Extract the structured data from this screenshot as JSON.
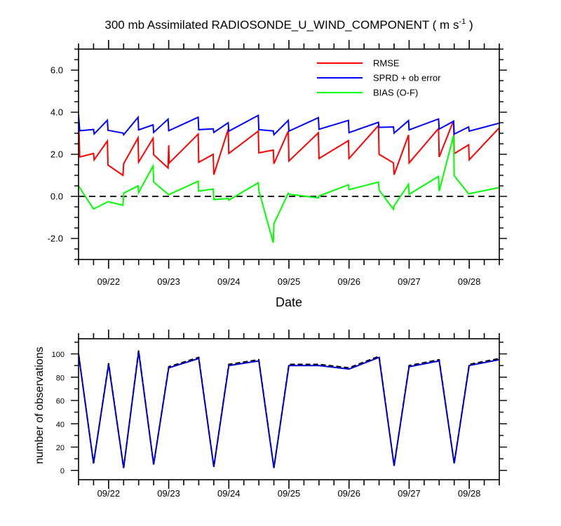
{
  "chart_data": [
    {
      "type": "line",
      "title": {
        "prefix": "300 mb Assimilated RADIOSONDE_U_WIND_COMPONENT ( m s",
        "sup": "-1",
        "suffix": " )"
      },
      "xlabel": "Date",
      "ylabel": "",
      "xlim": [
        21.5,
        28.5
      ],
      "ylim": [
        -3,
        7
      ],
      "yticks": [
        -2,
        0,
        2,
        4,
        6
      ],
      "ytick_labels": [
        "-2.0",
        "0.0",
        "2.0",
        "4.0",
        "6.0"
      ],
      "xticks": [
        22,
        23,
        24,
        25,
        26,
        27,
        28
      ],
      "xtick_labels": [
        "09/22",
        "09/23",
        "09/24",
        "09/25",
        "09/26",
        "09/27",
        "09/28"
      ],
      "reference_line": {
        "y": 0,
        "style": "dashed",
        "color": "#000000"
      },
      "legend": [
        "RMSE",
        "SPRD + ob error",
        "BIAS (O-F)"
      ],
      "legend_position": "top-right",
      "series": [
        {
          "name": "RMSE",
          "color": "#ff0000",
          "points": [
            [
              21.5,
              3.9
            ],
            [
              21.52,
              1.87
            ],
            [
              21.75,
              2.04
            ],
            [
              21.76,
              1.74
            ],
            [
              21.98,
              2.63
            ],
            [
              21.99,
              1.49
            ],
            [
              22.24,
              1.0
            ],
            [
              22.25,
              1.55
            ],
            [
              22.49,
              2.78
            ],
            [
              22.5,
              1.63
            ],
            [
              22.74,
              2.76
            ],
            [
              22.75,
              1.98
            ],
            [
              22.99,
              1.35
            ],
            [
              23.0,
              2.43
            ],
            [
              23.01,
              1.59
            ],
            [
              23.49,
              2.96
            ],
            [
              23.5,
              1.62
            ],
            [
              23.74,
              2.0
            ],
            [
              23.75,
              1.03
            ],
            [
              23.99,
              3.19
            ],
            [
              24.0,
              2.04
            ],
            [
              24.49,
              3.1
            ],
            [
              24.5,
              2.07
            ],
            [
              24.74,
              2.2
            ],
            [
              24.75,
              1.55
            ],
            [
              24.99,
              3.1
            ],
            [
              25.0,
              1.68
            ],
            [
              25.49,
              3.02
            ],
            [
              25.5,
              1.8
            ],
            [
              25.99,
              2.65
            ],
            [
              26.0,
              1.8
            ],
            [
              26.49,
              3.37
            ],
            [
              26.5,
              2.0
            ],
            [
              26.74,
              1.59
            ],
            [
              26.75,
              1.03
            ],
            [
              26.99,
              2.92
            ],
            [
              27.0,
              1.59
            ],
            [
              27.49,
              3.23
            ],
            [
              27.5,
              1.87
            ],
            [
              27.74,
              3.61
            ],
            [
              27.75,
              2.03
            ],
            [
              27.99,
              2.45
            ],
            [
              28.0,
              1.74
            ],
            [
              28.5,
              3.26
            ],
            [
              28.51,
              2.1
            ]
          ]
        },
        {
          "name": "SPRD + ob error",
          "color": "#0000ff",
          "points": [
            [
              21.5,
              3.9
            ],
            [
              21.52,
              3.12
            ],
            [
              21.75,
              3.18
            ],
            [
              21.76,
              2.97
            ],
            [
              21.98,
              3.62
            ],
            [
              21.99,
              3.14
            ],
            [
              22.24,
              3.01
            ],
            [
              22.25,
              2.93
            ],
            [
              22.49,
              3.76
            ],
            [
              22.5,
              3.16
            ],
            [
              22.74,
              3.4
            ],
            [
              22.75,
              3.04
            ],
            [
              22.99,
              3.67
            ],
            [
              23.0,
              3.12
            ],
            [
              23.49,
              3.76
            ],
            [
              23.5,
              3.17
            ],
            [
              23.74,
              3.21
            ],
            [
              23.75,
              3.04
            ],
            [
              23.99,
              3.5
            ],
            [
              24.0,
              3.1
            ],
            [
              24.49,
              3.85
            ],
            [
              24.5,
              3.17
            ],
            [
              24.74,
              3.11
            ],
            [
              24.75,
              2.93
            ],
            [
              24.99,
              3.61
            ],
            [
              25.0,
              3.1
            ],
            [
              25.49,
              3.74
            ],
            [
              25.5,
              3.19
            ],
            [
              25.99,
              3.61
            ],
            [
              26.0,
              3.03
            ],
            [
              26.49,
              3.52
            ],
            [
              26.5,
              3.28
            ],
            [
              26.74,
              3.3
            ],
            [
              26.75,
              3.01
            ],
            [
              26.99,
              3.6
            ],
            [
              27.0,
              3.16
            ],
            [
              27.49,
              3.68
            ],
            [
              27.5,
              3.2
            ],
            [
              27.74,
              3.57
            ],
            [
              27.75,
              2.96
            ],
            [
              27.99,
              3.3
            ],
            [
              28.0,
              3.1
            ],
            [
              28.5,
              3.48
            ]
          ]
        },
        {
          "name": "BIAS (O-F)",
          "color": "#00ff00",
          "points": [
            [
              21.5,
              0.5
            ],
            [
              21.75,
              -0.6
            ],
            [
              21.99,
              -0.25
            ],
            [
              22.24,
              -0.42
            ],
            [
              22.25,
              0.15
            ],
            [
              22.49,
              0.5
            ],
            [
              22.5,
              0.18
            ],
            [
              22.74,
              1.45
            ],
            [
              22.75,
              0.68
            ],
            [
              23.0,
              0.08
            ],
            [
              23.49,
              0.72
            ],
            [
              23.5,
              0.25
            ],
            [
              23.74,
              0.35
            ],
            [
              23.75,
              -0.15
            ],
            [
              23.99,
              -0.1
            ],
            [
              24.0,
              -0.18
            ],
            [
              24.49,
              0.65
            ],
            [
              24.5,
              0.28
            ],
            [
              24.74,
              -2.2
            ],
            [
              24.75,
              -1.3
            ],
            [
              24.99,
              0.15
            ],
            [
              25.0,
              0.1
            ],
            [
              25.49,
              -0.07
            ],
            [
              25.5,
              0.02
            ],
            [
              25.99,
              0.55
            ],
            [
              26.0,
              0.32
            ],
            [
              26.49,
              0.68
            ],
            [
              26.5,
              0.3
            ],
            [
              26.74,
              -0.62
            ],
            [
              26.75,
              -0.45
            ],
            [
              26.99,
              0.57
            ],
            [
              27.0,
              0.1
            ],
            [
              27.49,
              0.95
            ],
            [
              27.5,
              0.25
            ],
            [
              27.74,
              2.9
            ],
            [
              27.75,
              0.98
            ],
            [
              27.99,
              0.12
            ],
            [
              28.5,
              0.42
            ]
          ]
        }
      ]
    },
    {
      "type": "line",
      "title": "",
      "xlabel": "",
      "ylabel": "number of observations",
      "xlim": [
        21.5,
        28.5
      ],
      "ylim": [
        -8,
        113
      ],
      "yticks": [
        0,
        20,
        40,
        60,
        80,
        100
      ],
      "ytick_labels": [
        "0",
        "20",
        "40",
        "60",
        "80",
        "100"
      ],
      "xticks": [
        22,
        23,
        24,
        25,
        26,
        27,
        28
      ],
      "xtick_labels": [
        "09/22",
        "09/23",
        "09/24",
        "09/25",
        "09/26",
        "09/27",
        "09/28"
      ],
      "series": [
        {
          "name": "observations (dashed)",
          "color": "#000000",
          "style": "dashed",
          "points": [
            [
              21.5,
              100
            ],
            [
              21.75,
              6
            ],
            [
              22.0,
              92
            ],
            [
              22.25,
              2
            ],
            [
              22.5,
              103
            ],
            [
              22.75,
              5
            ],
            [
              23.0,
              89
            ],
            [
              23.5,
              97
            ],
            [
              23.75,
              3
            ],
            [
              24.0,
              91
            ],
            [
              24.5,
              95
            ],
            [
              24.75,
              2
            ],
            [
              25.0,
              91
            ],
            [
              25.5,
              91
            ],
            [
              26.0,
              88
            ],
            [
              26.5,
              98
            ],
            [
              26.75,
              4
            ],
            [
              27.0,
              90
            ],
            [
              27.5,
              95
            ],
            [
              27.75,
              6
            ],
            [
              28.0,
              91
            ],
            [
              28.5,
              96
            ]
          ]
        },
        {
          "name": "observations",
          "color": "#0000cc",
          "style": "solid",
          "points": [
            [
              21.5,
              100
            ],
            [
              21.75,
              6
            ],
            [
              22.0,
              91
            ],
            [
              22.25,
              2
            ],
            [
              22.5,
              102
            ],
            [
              22.75,
              5
            ],
            [
              23.0,
              88
            ],
            [
              23.5,
              96
            ],
            [
              23.75,
              3
            ],
            [
              24.0,
              90
            ],
            [
              24.5,
              94
            ],
            [
              24.75,
              2
            ],
            [
              25.0,
              90
            ],
            [
              25.5,
              90
            ],
            [
              26.0,
              87
            ],
            [
              26.5,
              97
            ],
            [
              26.75,
              4
            ],
            [
              27.0,
              89
            ],
            [
              27.5,
              94
            ],
            [
              27.75,
              6
            ],
            [
              28.0,
              90
            ],
            [
              28.5,
              95
            ]
          ]
        }
      ]
    }
  ]
}
